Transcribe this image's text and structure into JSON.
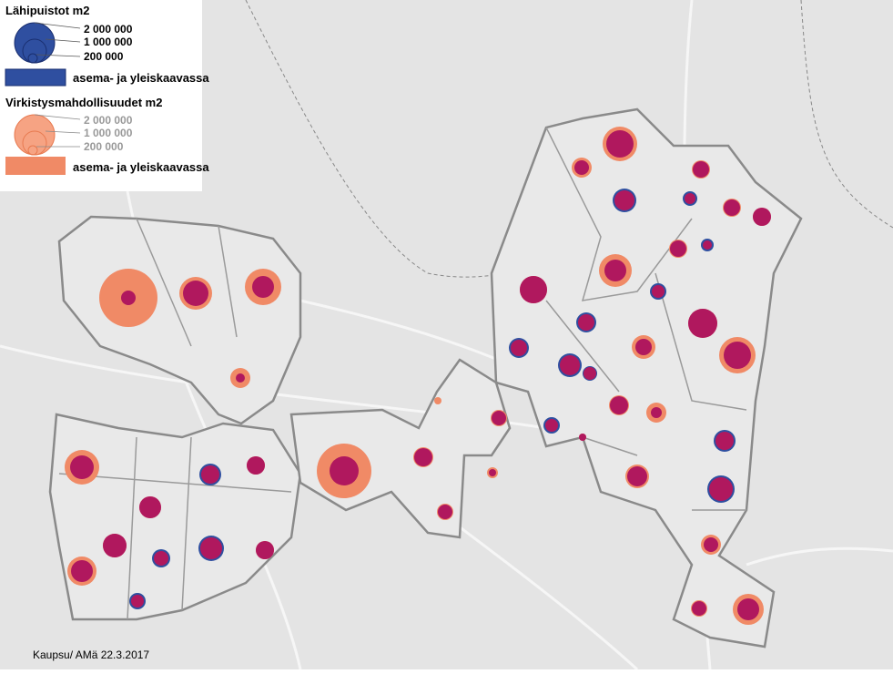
{
  "legend": {
    "parks": {
      "title": "Lähipuistot m2",
      "sizes": [
        {
          "value": 2000000,
          "label": "2 000 000"
        },
        {
          "value": 1000000,
          "label": "1 000 000"
        },
        {
          "value": 200000,
          "label": "200 000"
        }
      ],
      "plan_label": "asema- ja yleiskaavassa"
    },
    "recreation": {
      "title": "Virkistysmahdollisuudet m2",
      "sizes": [
        {
          "value": 2000000,
          "label": "2 000 000"
        },
        {
          "value": 1000000,
          "label": "1 000 000"
        },
        {
          "value": 200000,
          "label": "200 000"
        }
      ],
      "plan_label": "asema- ja yleiskaavassa"
    }
  },
  "footer": {
    "credit": "Kaupsu/ AMä 22.3.2017"
  }
}
